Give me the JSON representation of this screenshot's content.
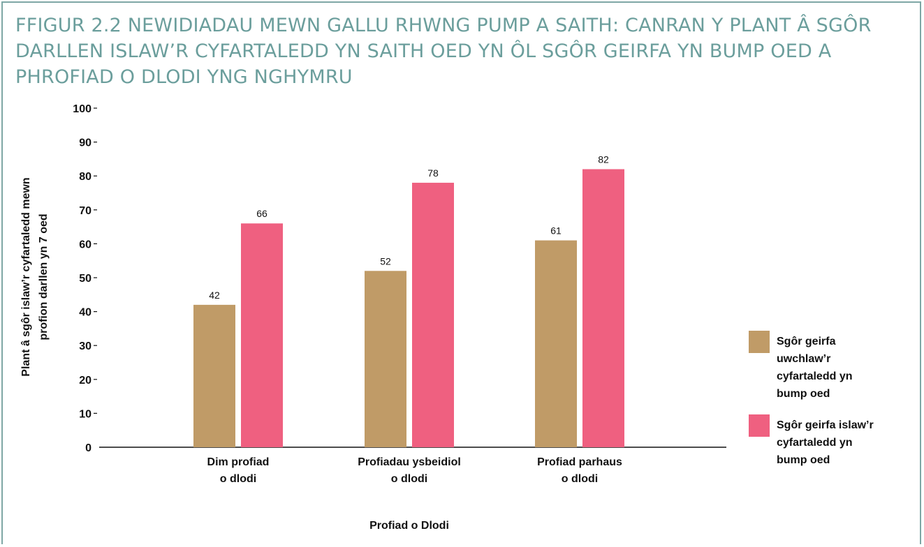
{
  "title": "FFIGUR 2.2 NEWIDIADAU MEWN GALLU RHWNG PUMP A SAITH: CANRAN Y PLANT Â SGÔR DARLLEN ISLAW’R CYFARTALEDD YN SAITH OED YN ÔL SGÔR GEIRFA YN BUMP OED A PHROFIAD O DLODI YNG NGHYMRU",
  "colors": {
    "frame": "#7ea7a5",
    "title": "#6b9e9c"
  },
  "chart_data": {
    "type": "bar",
    "categories": [
      [
        "Dim profiad",
        "o dlodi"
      ],
      [
        "Profiadau ysbeidiol",
        "o dlodi"
      ],
      [
        "Profiad parhaus",
        "o dlodi"
      ]
    ],
    "series": [
      {
        "name": [
          "Sgôr geirfa",
          "uwchlaw’r",
          "cyfartaledd yn",
          "bump oed"
        ],
        "color": "#c09b67",
        "values": [
          42,
          52,
          61
        ]
      },
      {
        "name": [
          "Sgôr geirfa  islaw’r",
          "cyfartaledd yn",
          "bump oed"
        ],
        "color": "#ef6080",
        "values": [
          66,
          78,
          82
        ]
      }
    ],
    "xlabel": "Profiad o Dlodi",
    "ylabel": [
      "Plant â sgôr islaw’r cyfartaledd mewn",
      "profion darllen yn 7 oed"
    ],
    "ylim": [
      0,
      100
    ],
    "yticks": [
      0,
      10,
      20,
      30,
      40,
      50,
      60,
      70,
      80,
      90,
      100
    ],
    "data_labels": true,
    "grid": false,
    "legend": "right"
  }
}
